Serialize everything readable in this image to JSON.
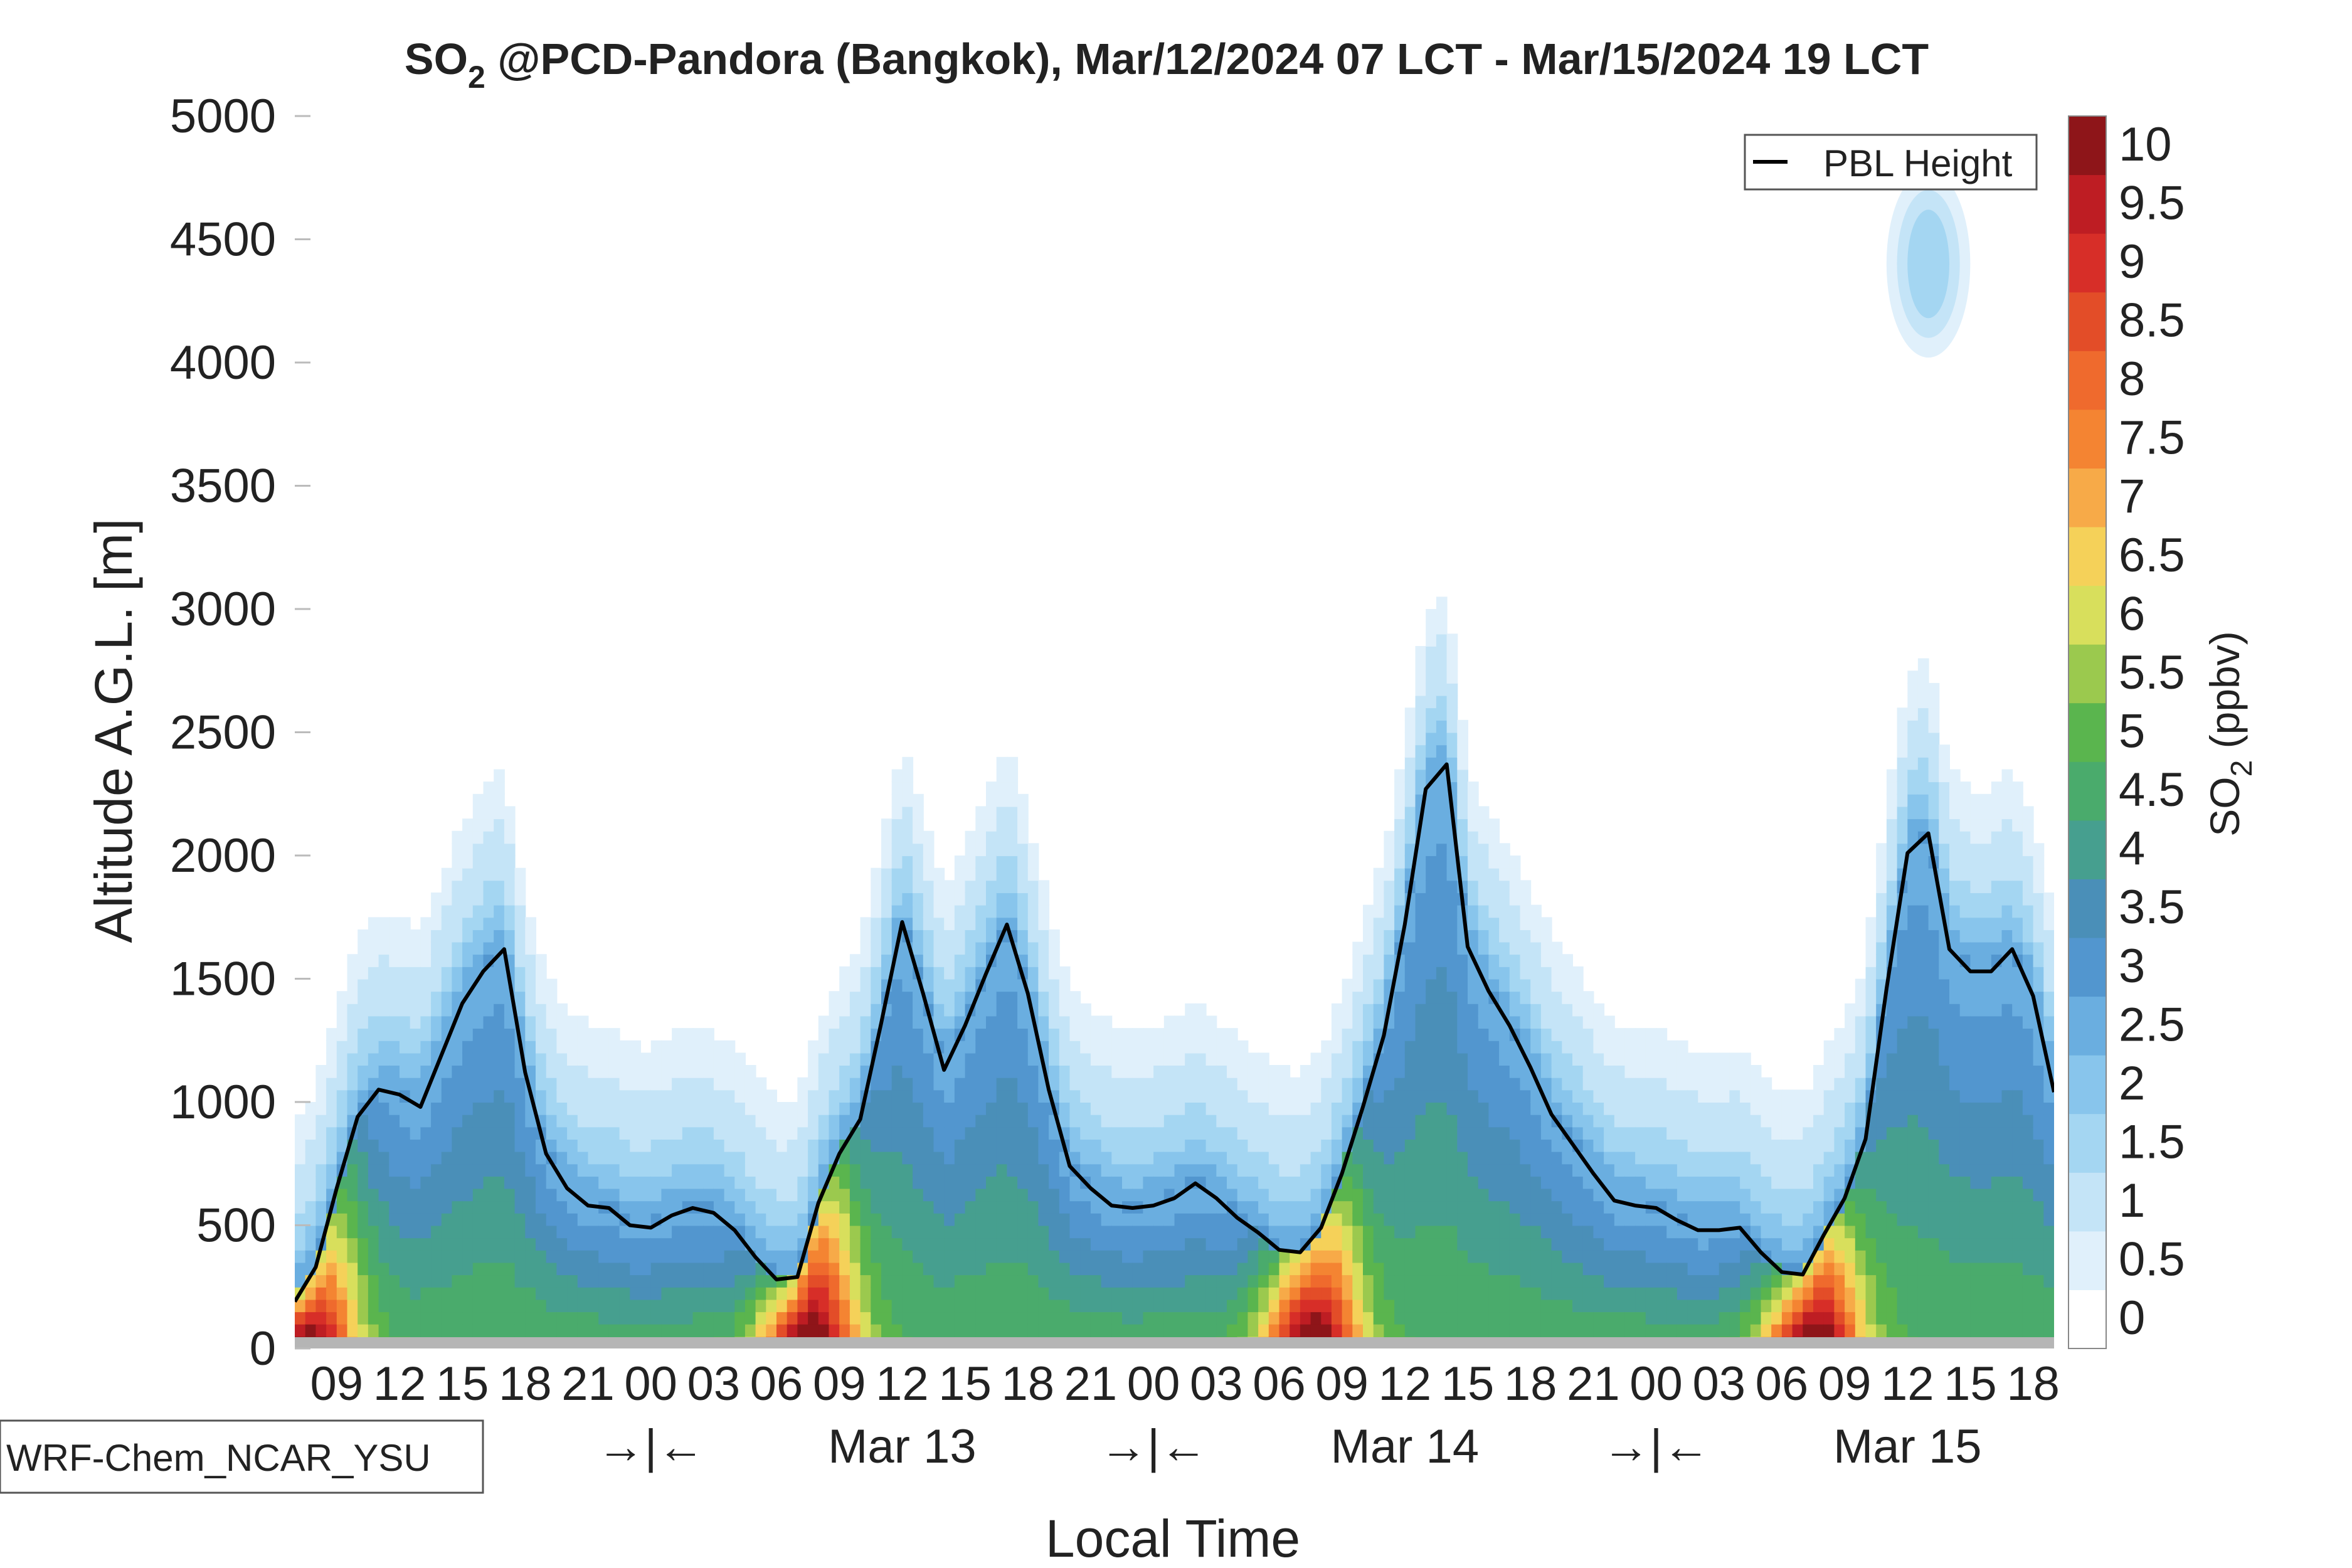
{
  "chart_data": {
    "type": "heatmap",
    "title_main": "SO",
    "title_sub": "2",
    "title_rest": " @PCD-Pandora (Bangkok), Mar/12/2024 07 LCT - Mar/15/2024 19 LCT",
    "xlabel": "Local Time",
    "ylabel": "Altitude A.G.L. [m]",
    "ylim": [
      0,
      5000
    ],
    "y_ticks": [
      "0",
      "500",
      "1000",
      "1500",
      "2000",
      "2500",
      "3000",
      "3500",
      "4000",
      "4500",
      "5000"
    ],
    "hour_ticks": [
      "09",
      "12",
      "15",
      "18",
      "21",
      "00",
      "03",
      "06",
      "09",
      "12",
      "15",
      "18",
      "21",
      "00",
      "03",
      "06",
      "09",
      "12",
      "15",
      "18",
      "21",
      "00",
      "03",
      "06",
      "09",
      "12",
      "15",
      "18"
    ],
    "hour_tick_hours": [
      9,
      12,
      15,
      18,
      21,
      24,
      27,
      30,
      33,
      36,
      39,
      42,
      45,
      48,
      51,
      54,
      57,
      60,
      63,
      66,
      69,
      72,
      75,
      78,
      81,
      84,
      87,
      90
    ],
    "day_labels": [
      "Mar 13",
      "Mar 14",
      "Mar 15"
    ],
    "day_label_hours": [
      36,
      60,
      84
    ],
    "day_separator": "→|←",
    "day_separator_hours": [
      24,
      48,
      72
    ],
    "x_range_hours": [
      7,
      91
    ],
    "colorbar": {
      "label_main": "SO",
      "label_sub": "2",
      "label_rest": " (ppbv)",
      "levels": [
        "0",
        "0.5",
        "1",
        "1.5",
        "2",
        "2.5",
        "3",
        "3.5",
        "4",
        "4.5",
        "5",
        "5.5",
        "6",
        "6.5",
        "7",
        "7.5",
        "8",
        "8.5",
        "9",
        "9.5",
        "10"
      ],
      "colors": [
        "#ffffff",
        "#e0f0fb",
        "#c4e4f7",
        "#a4d6f2",
        "#88c5ec",
        "#6aaee0",
        "#5296cf",
        "#4a8fb8",
        "#469f8f",
        "#4aab6c",
        "#5ab54e",
        "#9bc94e",
        "#d8df5c",
        "#f5d159",
        "#f7aa48",
        "#f48432",
        "#ef6a2d",
        "#e34d28",
        "#d72e28",
        "#be1d23",
        "#8e1519"
      ]
    },
    "pbl_legend": "PBL Height",
    "pbl_height": {
      "hours": [
        7,
        8,
        9,
        10,
        11,
        12,
        13,
        14,
        15,
        16,
        17,
        18,
        19,
        20,
        21,
        22,
        23,
        24,
        25,
        26,
        27,
        28,
        29,
        30,
        31,
        32,
        33,
        34,
        35,
        36,
        37,
        38,
        39,
        40,
        41,
        42,
        43,
        44,
        45,
        46,
        47,
        48,
        49,
        50,
        51,
        52,
        53,
        54,
        55,
        56,
        57,
        58,
        59,
        60,
        61,
        62,
        63,
        64,
        65,
        66,
        67,
        68,
        69,
        70,
        71,
        72,
        73,
        74,
        75,
        76,
        77,
        78,
        79,
        80,
        81,
        82,
        83,
        84,
        85,
        86,
        87,
        88,
        89,
        90,
        91
      ],
      "values": [
        190,
        330,
        650,
        940,
        1050,
        1030,
        980,
        1190,
        1400,
        1530,
        1620,
        1120,
        790,
        650,
        580,
        570,
        500,
        490,
        540,
        570,
        550,
        480,
        370,
        280,
        290,
        590,
        790,
        930,
        1320,
        1730,
        1440,
        1130,
        1310,
        1520,
        1720,
        1440,
        1050,
        740,
        650,
        580,
        570,
        580,
        610,
        670,
        610,
        530,
        470,
        400,
        390,
        490,
        710,
        980,
        1270,
        1720,
        2270,
        2370,
        1630,
        1450,
        1310,
        1140,
        950,
        830,
        710,
        600,
        580,
        570,
        520,
        480,
        480,
        490,
        390,
        310,
        300,
        460,
        610,
        850,
        1460,
        2010,
        2090,
        1620,
        1530,
        1530,
        1620,
        1430,
        1040
      ]
    },
    "model_label": "WRF-Chem_NCAR_YSU"
  }
}
